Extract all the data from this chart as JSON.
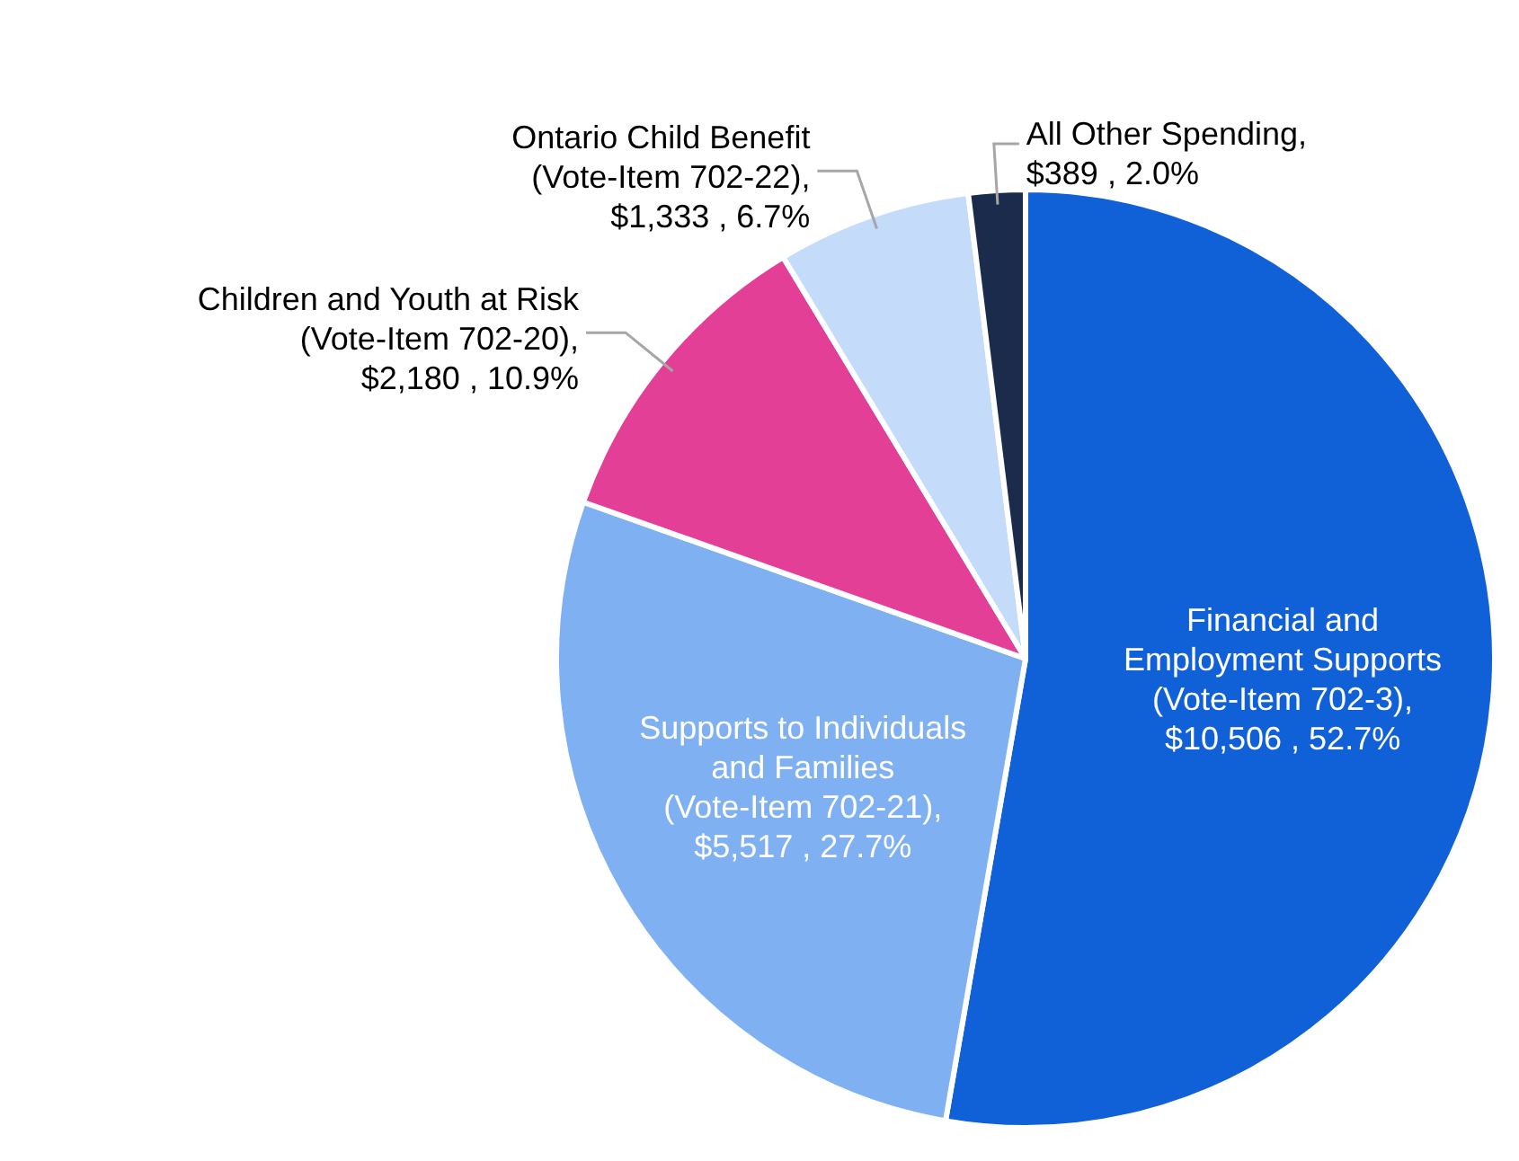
{
  "chart_data": {
    "type": "pie",
    "categories": [
      "Financial and Employment Supports (Vote-Item 702-3)",
      "Supports to Individuals and Families (Vote-Item 702-21)",
      "Children and Youth at Risk (Vote-Item 702-20)",
      "Ontario Child Benefit (Vote-Item 702-22)",
      "All Other Spending"
    ],
    "values": [
      10506,
      5517,
      2180,
      1333,
      389
    ],
    "value_labels": [
      ", $10,506 , 52.7%",
      ", $5,517 , 27.7%",
      ", $2,180 , 10.9%",
      ", $1,333 , 6.7%",
      ", $389 , 2.0%"
    ],
    "colors": [
      "#1060d8",
      "#7fb0f2",
      "#e33f96",
      "#c5dbfa",
      "#1a2b4c"
    ],
    "legend": false
  }
}
